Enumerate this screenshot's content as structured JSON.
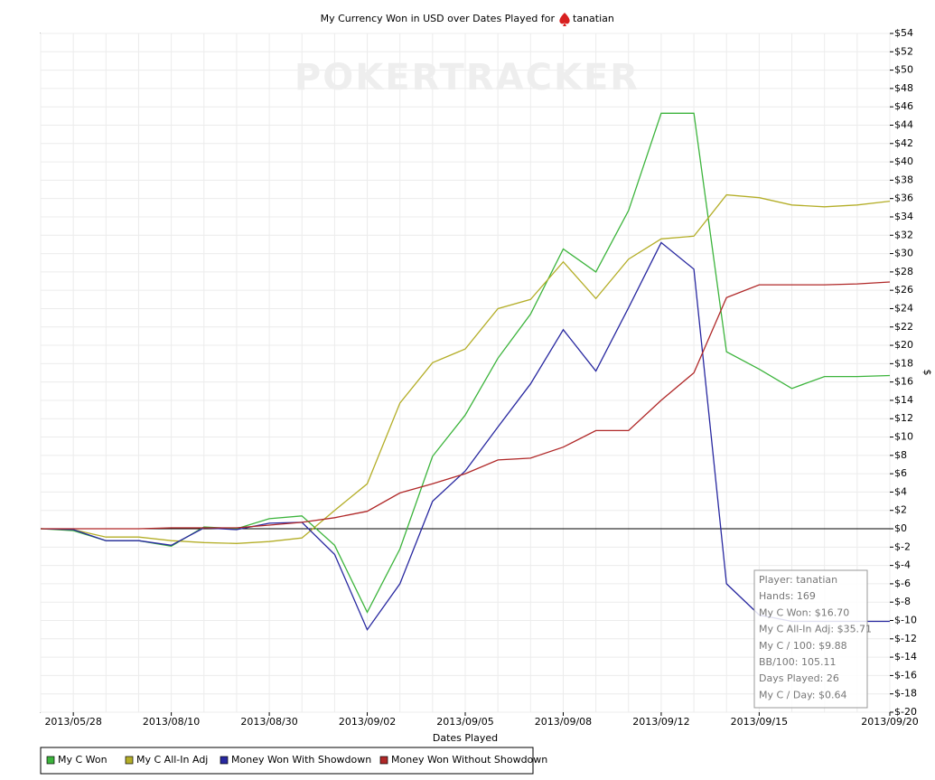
{
  "chart_data": {
    "type": "line",
    "title": "My Currency Won in USD over Dates Played for",
    "player": "tanatian",
    "watermark": "POKERTRACKER",
    "x_label": "Dates Played",
    "y_label": "$",
    "categories": [
      null,
      "2013/05/28",
      null,
      null,
      "2013/08/10",
      null,
      null,
      "2013/08/30",
      null,
      null,
      "2013/09/02",
      null,
      null,
      "2013/09/05",
      null,
      null,
      "2013/09/08",
      null,
      null,
      "2013/09/12",
      null,
      null,
      "2013/09/15",
      null,
      null,
      null,
      "2013/09/20"
    ],
    "series": [
      {
        "name": "My C Won",
        "color": "#3cb43c",
        "values": [
          0,
          -0.2,
          -1.3,
          -1.3,
          -1.9,
          0.2,
          0,
          1.1,
          1.4,
          -1.8,
          -9.1,
          -2.2,
          7.9,
          12.4,
          18.6,
          23.4,
          30.5,
          28,
          34.7,
          45.3,
          45.3,
          19.3,
          17.4,
          15.3,
          16.6,
          16.6,
          16.7
        ]
      },
      {
        "name": "My C All-In Adj",
        "color": "#b4ae28",
        "values": [
          0,
          -0.1,
          -0.9,
          -0.9,
          -1.3,
          -1.5,
          -1.6,
          -1.4,
          -1,
          2,
          4.9,
          13.7,
          18.1,
          19.6,
          24,
          25,
          29.1,
          25.1,
          29.4,
          31.6,
          31.9,
          36.4,
          36.1,
          35.3,
          35.1,
          35.3,
          35.71
        ]
      },
      {
        "name": "Money Won With Showdown",
        "color": "#2828a0",
        "values": [
          0,
          -0.1,
          -1.3,
          -1.3,
          -1.8,
          0.1,
          -0.1,
          0.6,
          0.7,
          -2.8,
          -11,
          -6,
          3,
          6.3,
          11.1,
          15.8,
          21.7,
          17.2,
          24.1,
          31.2,
          28.3,
          -6,
          -9.4,
          -10.1,
          -10.1,
          -10.1,
          -10.1
        ]
      },
      {
        "name": "Money Won Without Showdown",
        "color": "#b02828",
        "values": [
          0,
          0,
          0,
          0,
          0.1,
          0.1,
          0.1,
          0.4,
          0.7,
          1.2,
          1.9,
          3.9,
          4.9,
          6,
          7.5,
          7.7,
          8.9,
          10.7,
          10.7,
          14,
          17,
          25.2,
          26.6,
          26.6,
          26.6,
          26.7,
          26.9
        ]
      }
    ],
    "ylim": [
      -20,
      54
    ],
    "yticks": [
      {
        "value": -20,
        "label": "$-20"
      },
      {
        "value": -18,
        "label": "$-18"
      },
      {
        "value": -16,
        "label": "$-16"
      },
      {
        "value": -14,
        "label": "$-14"
      },
      {
        "value": -12,
        "label": "$-12"
      },
      {
        "value": -10,
        "label": "$-10"
      },
      {
        "value": -8,
        "label": "$-8"
      },
      {
        "value": -6,
        "label": "$-6"
      },
      {
        "value": -4,
        "label": "$-4"
      },
      {
        "value": -2,
        "label": "$-2"
      },
      {
        "value": 0,
        "label": "$0"
      },
      {
        "value": 2,
        "label": "$2"
      },
      {
        "value": 4,
        "label": "$4"
      },
      {
        "value": 6,
        "label": "$6"
      },
      {
        "value": 8,
        "label": "$8"
      },
      {
        "value": 10,
        "label": "$10"
      },
      {
        "value": 12,
        "label": "$12"
      },
      {
        "value": 14,
        "label": "$14"
      },
      {
        "value": 16,
        "label": "$16"
      },
      {
        "value": 18,
        "label": "$18"
      },
      {
        "value": 20,
        "label": "$20"
      },
      {
        "value": 22,
        "label": "$22"
      },
      {
        "value": 24,
        "label": "$24"
      },
      {
        "value": 26,
        "label": "$26"
      },
      {
        "value": 28,
        "label": "$28"
      },
      {
        "value": 30,
        "label": "$30"
      },
      {
        "value": 32,
        "label": "$32"
      },
      {
        "value": 34,
        "label": "$34"
      },
      {
        "value": 36,
        "label": "$36"
      },
      {
        "value": 38,
        "label": "$38"
      },
      {
        "value": 40,
        "label": "$40"
      },
      {
        "value": 42,
        "label": "$42"
      },
      {
        "value": 44,
        "label": "$44"
      },
      {
        "value": 46,
        "label": "$46"
      },
      {
        "value": 48,
        "label": "$48"
      },
      {
        "value": 50,
        "label": "$50"
      },
      {
        "value": 52,
        "label": "$52"
      },
      {
        "value": 54,
        "label": "$54"
      }
    ],
    "grid": true,
    "info_box": [
      "Player: tanatian",
      "Hands: 169",
      "My C Won: $16.70",
      "My C All-In Adj: $35.71",
      "My C / 100: $9.88",
      "BB/100: 105.11",
      "Days Played: 26",
      "My C / Day: $0.64"
    ]
  }
}
